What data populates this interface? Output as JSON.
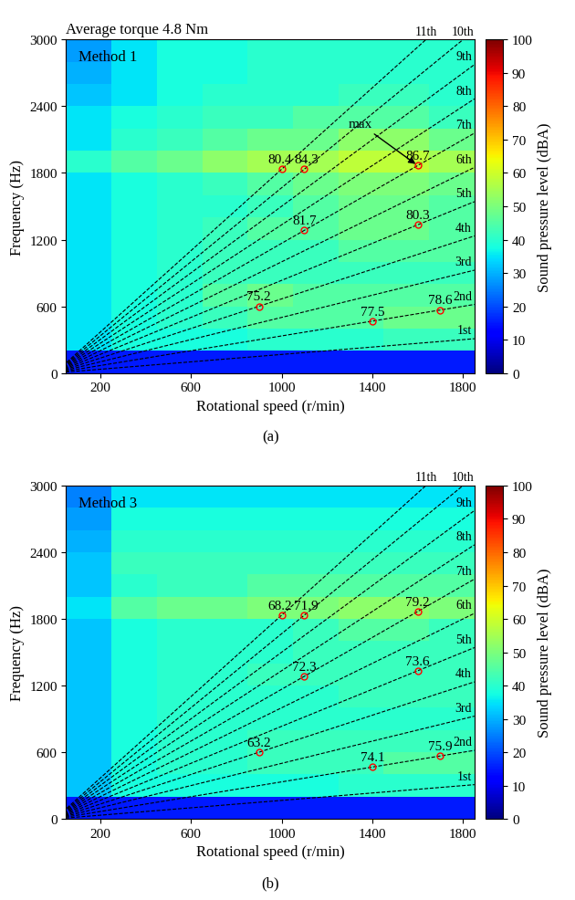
{
  "chart_data": [
    {
      "type": "heatmap",
      "subtitle": "Average torque 4.8 Nm",
      "title": "Method 1",
      "caption": "(a)",
      "x_label": "Rotational speed (r/min)",
      "y_label": "Frequency (Hz)",
      "xlim": [
        50,
        1850
      ],
      "ylim": [
        0,
        3000
      ],
      "xticks": [
        200,
        600,
        1000,
        1400,
        1800
      ],
      "yticks": [
        0,
        600,
        1200,
        1800,
        2400,
        3000
      ],
      "x_edges": [
        50,
        250,
        450,
        650,
        850,
        1050,
        1250,
        1450,
        1650,
        1850
      ],
      "y_edges": [
        0,
        200,
        400,
        600,
        800,
        1000,
        1200,
        1400,
        1600,
        1800,
        2000,
        2200,
        2400,
        2600,
        2800,
        3000
      ],
      "cells": [
        [
          15,
          15,
          15,
          15,
          15,
          15,
          15,
          15,
          15
        ],
        [
          35,
          38,
          38,
          38,
          40,
          40,
          40,
          42,
          42
        ],
        [
          35,
          38,
          40,
          42,
          45,
          45,
          45,
          48,
          48
        ],
        [
          35,
          38,
          40,
          45,
          48,
          45,
          45,
          45,
          45
        ],
        [
          35,
          38,
          40,
          42,
          42,
          42,
          42,
          42,
          42
        ],
        [
          35,
          38,
          40,
          42,
          42,
          42,
          45,
          45,
          45
        ],
        [
          35,
          38,
          40,
          42,
          45,
          45,
          48,
          48,
          45
        ],
        [
          35,
          38,
          40,
          40,
          42,
          45,
          48,
          48,
          45
        ],
        [
          35,
          38,
          40,
          42,
          45,
          48,
          50,
          50,
          48
        ],
        [
          40,
          45,
          48,
          52,
          55,
          55,
          58,
          58,
          55
        ],
        [
          35,
          40,
          42,
          45,
          48,
          48,
          52,
          52,
          48
        ],
        [
          35,
          38,
          40,
          42,
          42,
          45,
          45,
          45,
          42
        ],
        [
          32,
          35,
          38,
          40,
          40,
          40,
          42,
          42,
          40
        ],
        [
          30,
          35,
          38,
          38,
          40,
          40,
          40,
          40,
          40
        ],
        [
          28,
          35,
          38,
          38,
          40,
          40,
          40,
          40,
          40
        ]
      ],
      "colorbar": {
        "label": "Sound pressure level (dBA)",
        "range": [
          0,
          100
        ],
        "ticks": [
          0,
          10,
          20,
          30,
          40,
          50,
          60,
          70,
          80,
          90,
          100
        ]
      },
      "order_lines": [
        {
          "label": "1st",
          "x": [
            0,
            1850
          ],
          "y": [
            0,
            308.3
          ]
        },
        {
          "label": "2nd",
          "x": [
            0,
            1850
          ],
          "y": [
            0,
            616.7
          ]
        },
        {
          "label": "3rd",
          "x": [
            0,
            1850
          ],
          "y": [
            0,
            925.0
          ]
        },
        {
          "label": "4th",
          "x": [
            0,
            1850
          ],
          "y": [
            0,
            1233.3
          ]
        },
        {
          "label": "5th",
          "x": [
            0,
            1850
          ],
          "y": [
            0,
            1541.7
          ]
        },
        {
          "label": "6th",
          "x": [
            0,
            1850
          ],
          "y": [
            0,
            1850.0
          ]
        },
        {
          "label": "7th",
          "x": [
            0,
            1850
          ],
          "y": [
            0,
            2158.3
          ]
        },
        {
          "label": "8th",
          "x": [
            0,
            1850
          ],
          "y": [
            0,
            2466.7
          ]
        },
        {
          "label": "9th",
          "x": [
            0,
            1850
          ],
          "y": [
            0,
            2775.0
          ]
        },
        {
          "label": "10th",
          "x": [
            0,
            1850
          ],
          "y": [
            0,
            3083.3
          ]
        },
        {
          "label": "11th",
          "x": [
            0,
            1850
          ],
          "y": [
            0,
            3391.7
          ]
        }
      ],
      "points": [
        {
          "x": 1000,
          "y": 1833,
          "value": 80.4
        },
        {
          "x": 1100,
          "y": 1833,
          "value": 84.3
        },
        {
          "x": 1600,
          "y": 1867,
          "value": 86.7
        },
        {
          "x": 1100,
          "y": 1283,
          "value": 81.7
        },
        {
          "x": 1600,
          "y": 1333,
          "value": 80.3
        },
        {
          "x": 900,
          "y": 600,
          "value": 75.2
        },
        {
          "x": 1400,
          "y": 467,
          "value": 77.5
        },
        {
          "x": 1700,
          "y": 567,
          "value": 78.6
        }
      ],
      "annotations": [
        {
          "text": "max",
          "x": 1600,
          "y": 1867
        }
      ]
    },
    {
      "type": "heatmap",
      "title": "Method 3",
      "caption": "(b)",
      "x_label": "Rotational speed (r/min)",
      "y_label": "Frequency (Hz)",
      "xlim": [
        50,
        1850
      ],
      "ylim": [
        0,
        3000
      ],
      "xticks": [
        200,
        600,
        1000,
        1400,
        1800
      ],
      "yticks": [
        0,
        600,
        1200,
        1800,
        2400,
        3000
      ],
      "x_edges": [
        50,
        250,
        450,
        650,
        850,
        1050,
        1250,
        1450,
        1650,
        1850
      ],
      "y_edges": [
        0,
        200,
        400,
        600,
        800,
        1000,
        1200,
        1400,
        1600,
        1800,
        2000,
        2200,
        2400,
        2600,
        2800,
        3000
      ],
      "cells": [
        [
          15,
          15,
          15,
          15,
          15,
          15,
          15,
          15,
          15
        ],
        [
          32,
          38,
          38,
          38,
          38,
          38,
          40,
          40,
          40
        ],
        [
          32,
          38,
          40,
          40,
          42,
          42,
          42,
          45,
          45
        ],
        [
          32,
          38,
          40,
          40,
          42,
          42,
          42,
          42,
          42
        ],
        [
          32,
          38,
          40,
          40,
          40,
          40,
          40,
          40,
          40
        ],
        [
          32,
          38,
          40,
          40,
          40,
          40,
          42,
          42,
          42
        ],
        [
          32,
          38,
          40,
          40,
          42,
          42,
          42,
          42,
          42
        ],
        [
          32,
          38,
          40,
          40,
          40,
          42,
          42,
          42,
          42
        ],
        [
          32,
          38,
          40,
          40,
          40,
          42,
          45,
          45,
          42
        ],
        [
          35,
          45,
          48,
          48,
          50,
          50,
          52,
          52,
          50
        ],
        [
          32,
          40,
          42,
          42,
          45,
          45,
          45,
          45,
          45
        ],
        [
          32,
          42,
          42,
          42,
          42,
          42,
          42,
          42,
          42
        ],
        [
          30,
          40,
          40,
          40,
          40,
          40,
          40,
          40,
          40
        ],
        [
          28,
          38,
          38,
          38,
          38,
          38,
          38,
          38,
          38
        ],
        [
          25,
          35,
          35,
          35,
          35,
          35,
          35,
          35,
          35
        ]
      ],
      "colorbar": {
        "label": "Sound pressure level (dBA)",
        "range": [
          0,
          100
        ],
        "ticks": [
          0,
          10,
          20,
          30,
          40,
          50,
          60,
          70,
          80,
          90,
          100
        ]
      },
      "order_lines": [
        {
          "label": "1st",
          "x": [
            0,
            1850
          ],
          "y": [
            0,
            308.3
          ]
        },
        {
          "label": "2nd",
          "x": [
            0,
            1850
          ],
          "y": [
            0,
            616.7
          ]
        },
        {
          "label": "3rd",
          "x": [
            0,
            1850
          ],
          "y": [
            0,
            925.0
          ]
        },
        {
          "label": "4th",
          "x": [
            0,
            1850
          ],
          "y": [
            0,
            1233.3
          ]
        },
        {
          "label": "5th",
          "x": [
            0,
            1850
          ],
          "y": [
            0,
            1541.7
          ]
        },
        {
          "label": "6th",
          "x": [
            0,
            1850
          ],
          "y": [
            0,
            1850.0
          ]
        },
        {
          "label": "7th",
          "x": [
            0,
            1850
          ],
          "y": [
            0,
            2158.3
          ]
        },
        {
          "label": "8th",
          "x": [
            0,
            1850
          ],
          "y": [
            0,
            2466.7
          ]
        },
        {
          "label": "9th",
          "x": [
            0,
            1850
          ],
          "y": [
            0,
            2775.0
          ]
        },
        {
          "label": "10th",
          "x": [
            0,
            1850
          ],
          "y": [
            0,
            3083.3
          ]
        },
        {
          "label": "11th",
          "x": [
            0,
            1850
          ],
          "y": [
            0,
            3391.7
          ]
        }
      ],
      "points": [
        {
          "x": 1000,
          "y": 1833,
          "value": 68.2
        },
        {
          "x": 1100,
          "y": 1833,
          "value": 71.9
        },
        {
          "x": 1600,
          "y": 1867,
          "value": 79.2
        },
        {
          "x": 1100,
          "y": 1283,
          "value": 72.3
        },
        {
          "x": 1600,
          "y": 1333,
          "value": 73.6
        },
        {
          "x": 900,
          "y": 600,
          "value": 63.2
        },
        {
          "x": 1400,
          "y": 467,
          "value": 74.1
        },
        {
          "x": 1700,
          "y": 567,
          "value": 75.9
        }
      ]
    }
  ]
}
